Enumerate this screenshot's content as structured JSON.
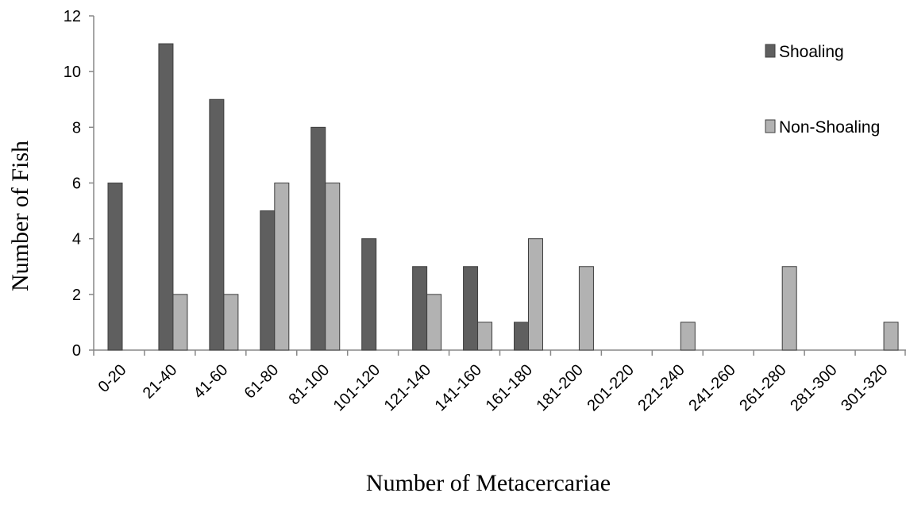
{
  "chart_data": {
    "type": "bar",
    "title": "",
    "xlabel": "Number of Metacercariae",
    "ylabel": "Number of Fish",
    "ylim": [
      0,
      12
    ],
    "yticks": [
      0,
      2,
      4,
      6,
      8,
      10,
      12
    ],
    "grid": false,
    "legend_position": "top-right",
    "categories": [
      "0-20",
      "21-40",
      "41-60",
      "61-80",
      "81-100",
      "101-120",
      "121-140",
      "141-160",
      "161-180",
      "181-200",
      "201-220",
      "221-240",
      "241-260",
      "261-280",
      "281-300",
      "301-320"
    ],
    "series": [
      {
        "name": "Shoaling",
        "color": "#5f5f5f",
        "values": [
          6,
          11,
          9,
          5,
          8,
          4,
          3,
          3,
          1,
          0,
          0,
          0,
          0,
          0,
          0,
          0
        ]
      },
      {
        "name": "Non-Shoaling",
        "color": "#b2b2b2",
        "values": [
          0,
          2,
          2,
          6,
          6,
          0,
          2,
          1,
          4,
          3,
          0,
          1,
          0,
          3,
          0,
          1
        ]
      }
    ]
  }
}
